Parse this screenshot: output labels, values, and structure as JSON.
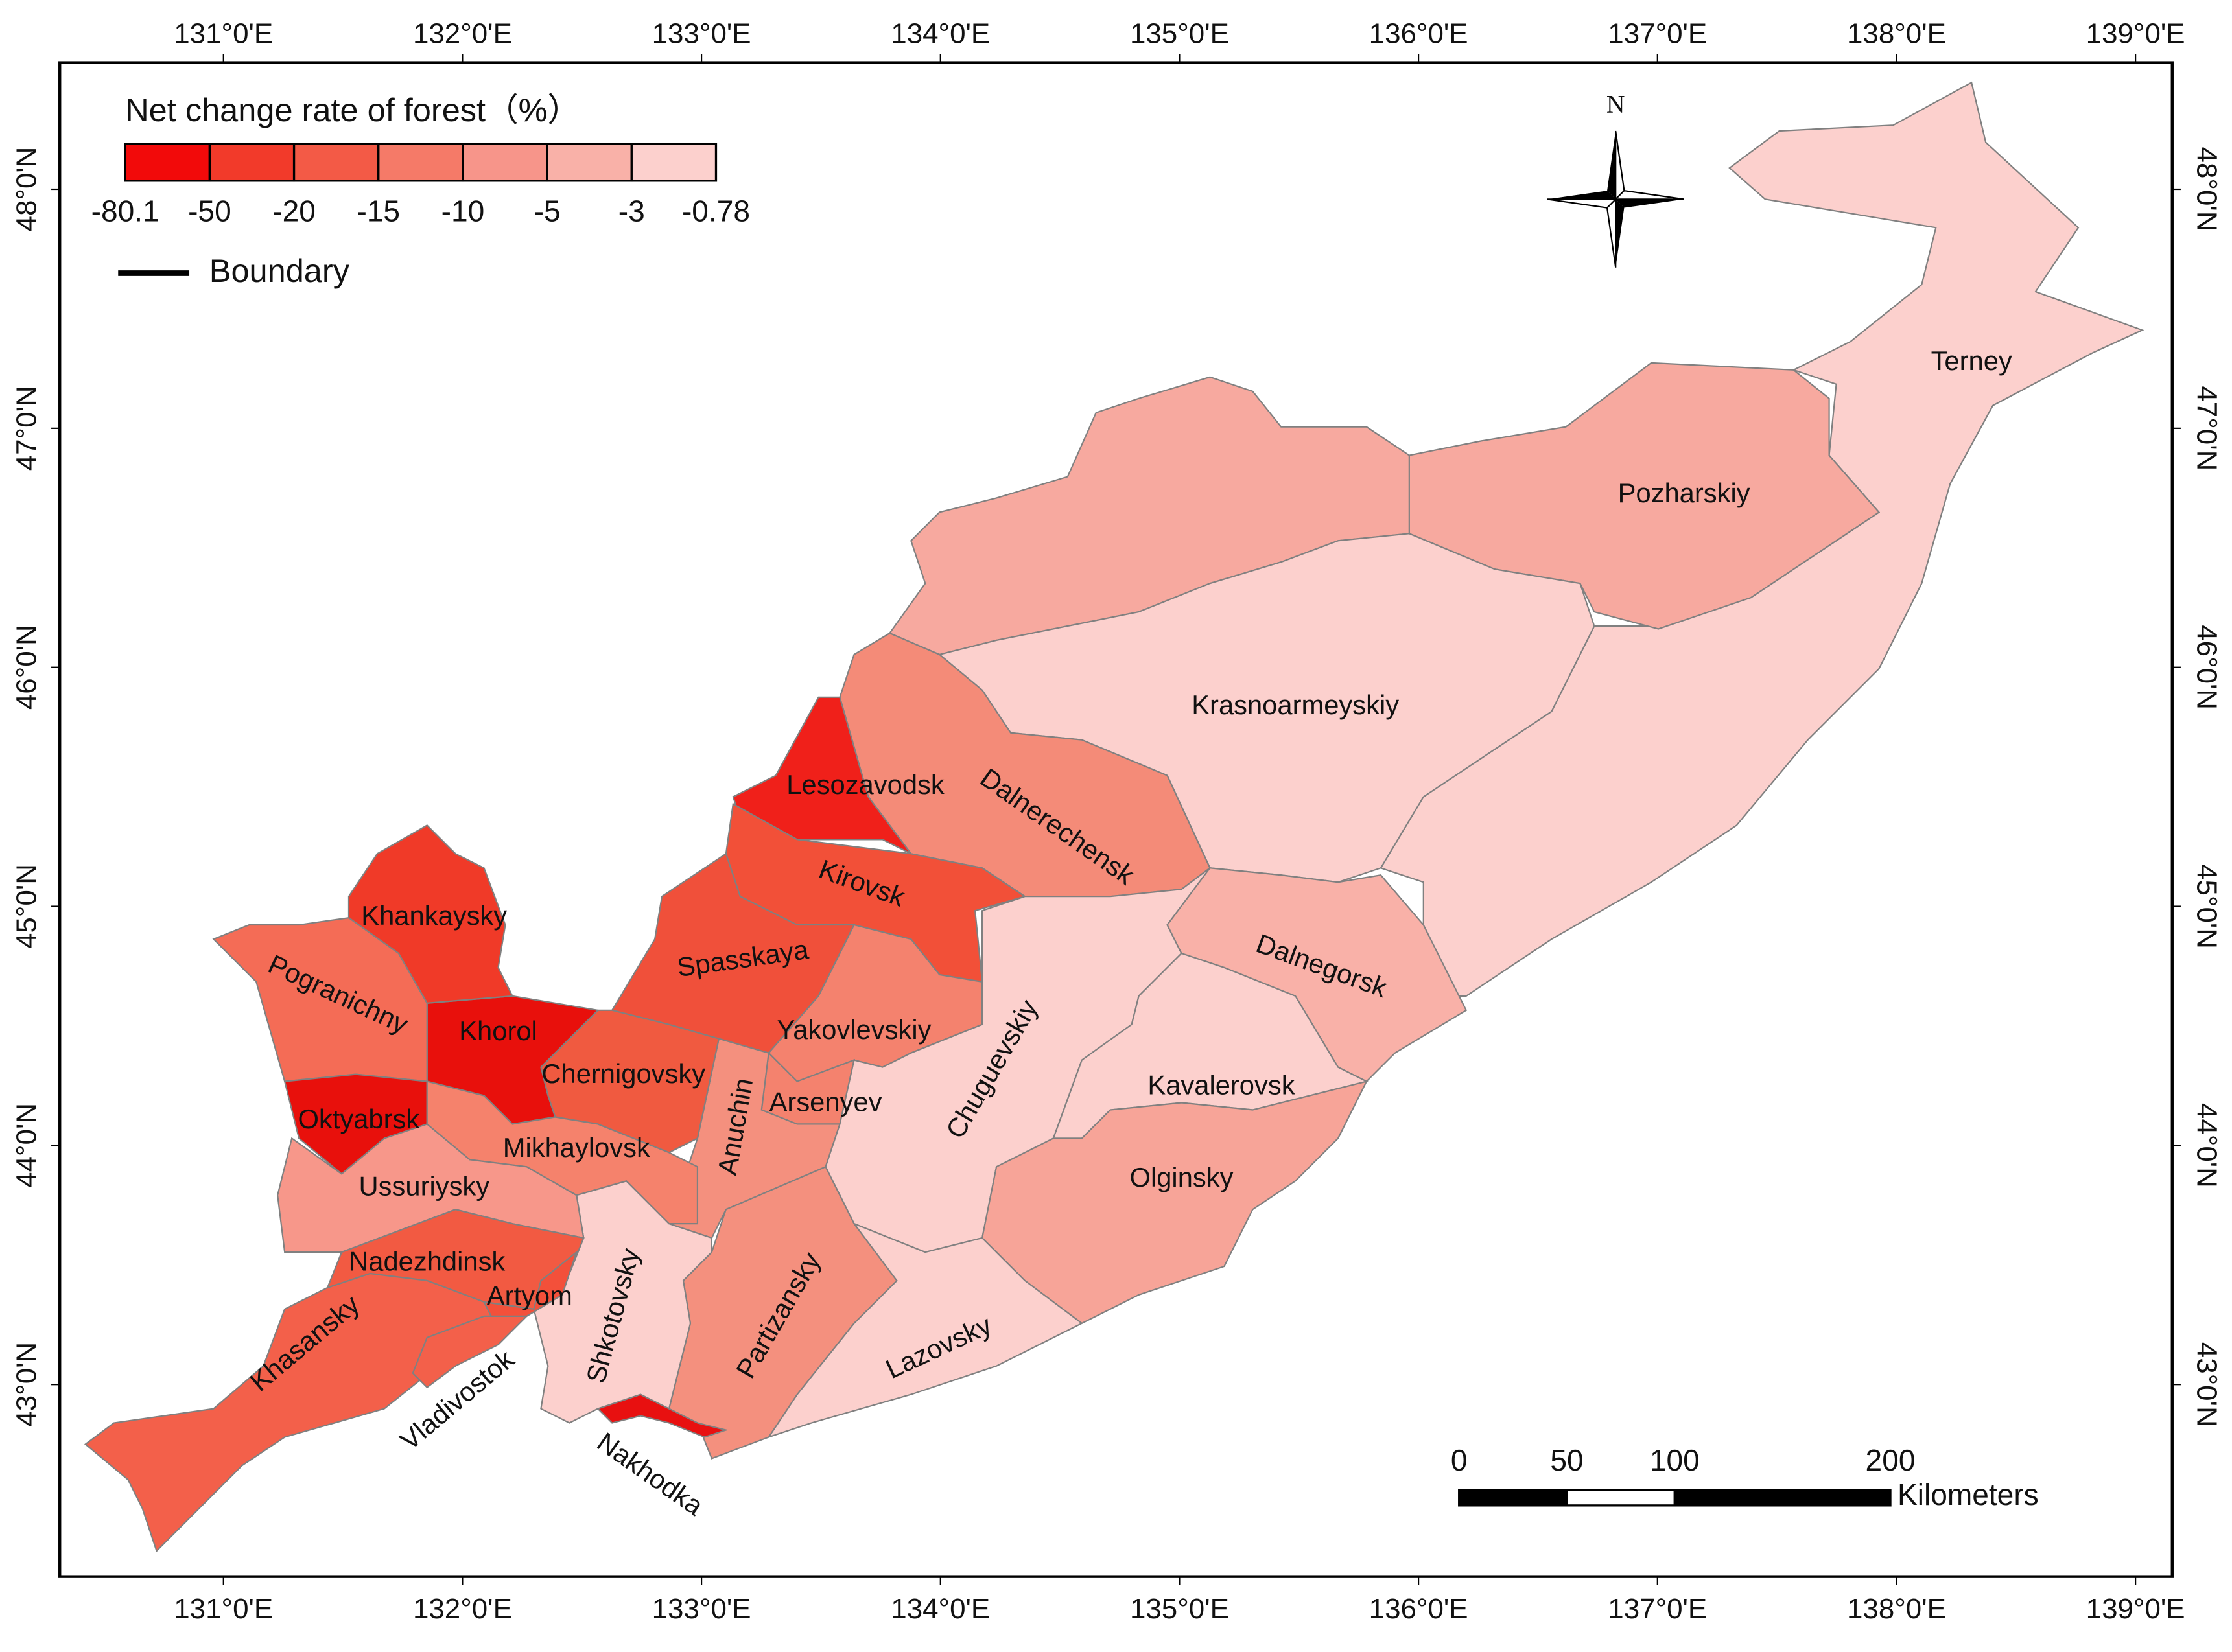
{
  "legend": {
    "title": "Net change rate of forest（%）",
    "breaks": [
      -80.1,
      -50,
      -20,
      -15,
      -10,
      -5,
      -3,
      -0.78
    ],
    "colors": [
      "#f20a0a",
      "#f23a2a",
      "#f35a46",
      "#f57a68",
      "#f7958a",
      "#f9b1a8",
      "#fcd0cd"
    ],
    "boundary_label": "Boundary"
  },
  "north_label": "N",
  "scale_bar": {
    "ticks": [
      0,
      50,
      100,
      200
    ],
    "unit": "Kilometers"
  },
  "longitude_ticks": [
    {
      "value": 131,
      "label": "131°0'E"
    },
    {
      "value": 132,
      "label": "132°0'E"
    },
    {
      "value": 133,
      "label": "133°0'E"
    },
    {
      "value": 134,
      "label": "134°0'E"
    },
    {
      "value": 135,
      "label": "135°0'E"
    },
    {
      "value": 136,
      "label": "136°0'E"
    },
    {
      "value": 137,
      "label": "137°0'E"
    },
    {
      "value": 138,
      "label": "138°0'E"
    },
    {
      "value": 139,
      "label": "139°0'E"
    }
  ],
  "latitude_ticks": [
    {
      "value": 48,
      "label": "48°0'N"
    },
    {
      "value": 47,
      "label": "47°0'N"
    },
    {
      "value": 46,
      "label": "46°0'N"
    },
    {
      "value": 45,
      "label": "45°0'N"
    },
    {
      "value": 44,
      "label": "44°0'N"
    },
    {
      "value": 43,
      "label": "43°0'N"
    }
  ],
  "regions": [
    {
      "name": "Terney",
      "color": "#fcd0cd"
    },
    {
      "name": null,
      "color": "#f7a99f"
    },
    {
      "name": "Pozharskiy",
      "color": "#f7a99f"
    },
    {
      "name": "Krasnoarmeyskiy",
      "color": "#fcd0cd"
    },
    {
      "name": "Dalnerechensk",
      "color": "#f48b78"
    },
    {
      "name": "Lesozavodsk",
      "color": "#f0201a"
    },
    {
      "name": "Kirovsk",
      "color": "#f25038"
    },
    {
      "name": "Spasskaya",
      "color": "#f0503a"
    },
    {
      "name": "Yakovlevskiy",
      "color": "#f4826e"
    },
    {
      "name": "Arsenyev",
      "color": "#f4826e"
    },
    {
      "name": "Anuchin",
      "color": "#f4907e"
    },
    {
      "name": "Chuguevskiy",
      "color": "#fcd0cd"
    },
    {
      "name": "Dalnegorsk",
      "color": "#f9b1a8"
    },
    {
      "name": "Kavalerovsk",
      "color": "#fcd0cd"
    },
    {
      "name": "Olginsky",
      "color": "#f7a498"
    },
    {
      "name": "Lazovsky",
      "color": "#fcd0cd"
    },
    {
      "name": "Partizansky",
      "color": "#f4907e"
    },
    {
      "name": "Nakhodka",
      "color": "#e81010"
    },
    {
      "name": "Shkotovsky",
      "color": "#fcd0cd"
    },
    {
      "name": "Chernigovsky",
      "color": "#f05a40"
    },
    {
      "name": "Khorol",
      "color": "#e8100c"
    },
    {
      "name": "Khankaysky",
      "color": "#f03a28"
    },
    {
      "name": "Pogranichny",
      "color": "#f46c56"
    },
    {
      "name": "Oktyabrsk",
      "color": "#e8100c"
    },
    {
      "name": "Mikhaylovsk",
      "color": "#f5826c"
    },
    {
      "name": "Ussuriysky",
      "color": "#f7978a"
    },
    {
      "name": "Nadezhdinsk",
      "color": "#f25a42"
    },
    {
      "name": "Artyom",
      "color": "#f3503a"
    },
    {
      "name": "Khasansky",
      "color": "#f3604a"
    },
    {
      "name": "Vladivostok",
      "color": "#f3604a"
    }
  ]
}
